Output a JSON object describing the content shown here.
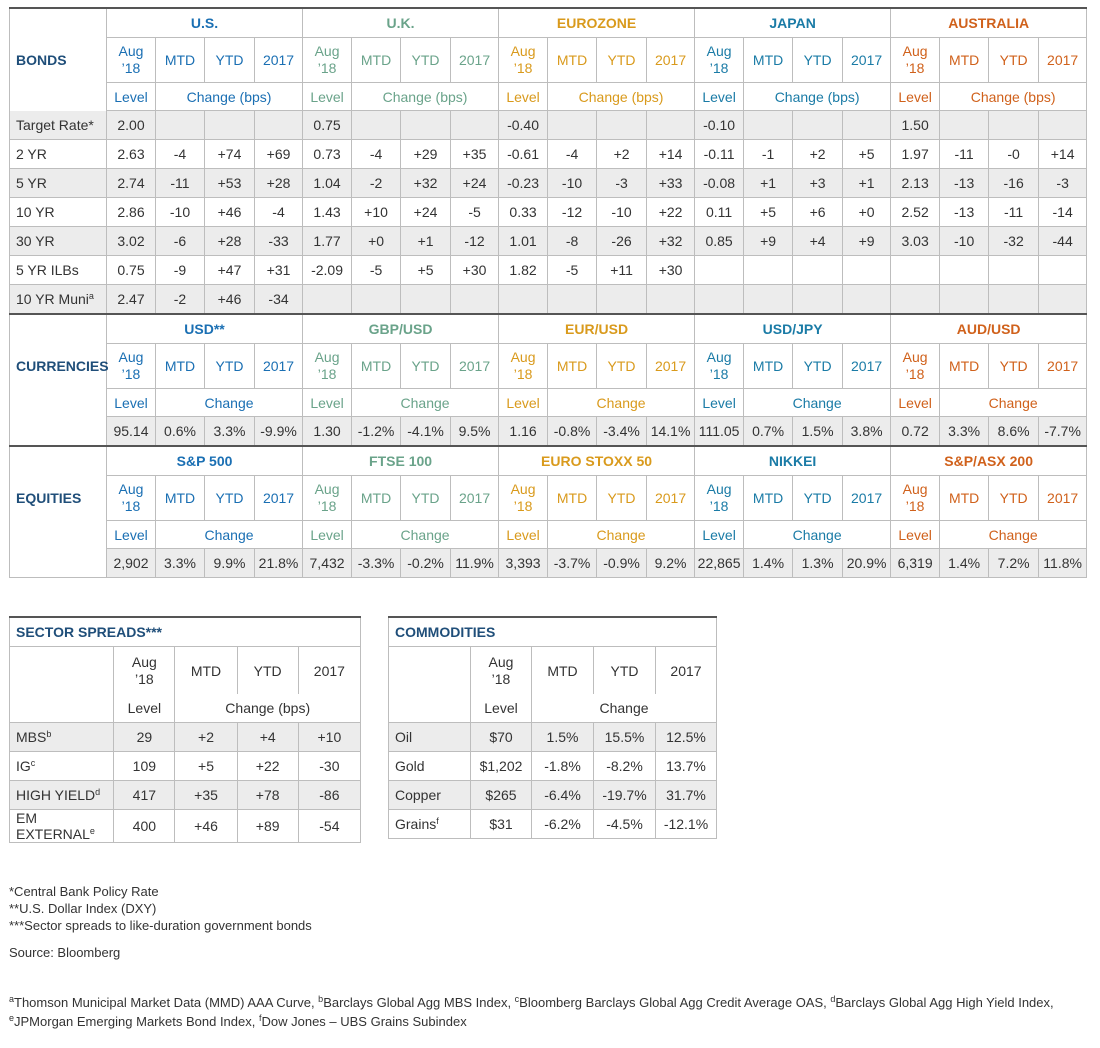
{
  "bonds": {
    "title": "BONDS",
    "regions": [
      "U.S.",
      "U.K.",
      "EUROZONE",
      "JAPAN",
      "AUSTRALIA"
    ],
    "col_aug": "Aug",
    "col_year": "’18",
    "col_mtd": "MTD",
    "col_ytd": "YTD",
    "col_2017": "2017",
    "sub_level": "Level",
    "sub_change": "Change (bps)",
    "rows": [
      {
        "label": "Target Rate*",
        "sup": "",
        "cells": [
          "2.00",
          "",
          "",
          "",
          "0.75",
          "",
          "",
          "",
          "-0.40",
          "",
          "",
          "",
          "-0.10",
          "",
          "",
          "",
          "1.50",
          "",
          "",
          ""
        ]
      },
      {
        "label": "2 YR",
        "sup": "",
        "cells": [
          "2.63",
          "-4",
          "+74",
          "+69",
          "0.73",
          "-4",
          "+29",
          "+35",
          "-0.61",
          "-4",
          "+2",
          "+14",
          "-0.11",
          "-1",
          "+2",
          "+5",
          "1.97",
          "-11",
          "-0",
          "+14"
        ]
      },
      {
        "label": "5 YR",
        "sup": "",
        "cells": [
          "2.74",
          "-11",
          "+53",
          "+28",
          "1.04",
          "-2",
          "+32",
          "+24",
          "-0.23",
          "-10",
          "-3",
          "+33",
          "-0.08",
          "+1",
          "+3",
          "+1",
          "2.13",
          "-13",
          "-16",
          "-3"
        ]
      },
      {
        "label": "10 YR",
        "sup": "",
        "cells": [
          "2.86",
          "-10",
          "+46",
          "-4",
          "1.43",
          "+10",
          "+24",
          "-5",
          "0.33",
          "-12",
          "-10",
          "+22",
          "0.11",
          "+5",
          "+6",
          "+0",
          "2.52",
          "-13",
          "-11",
          "-14"
        ]
      },
      {
        "label": "30 YR",
        "sup": "",
        "cells": [
          "3.02",
          "-6",
          "+28",
          "-33",
          "1.77",
          "+0",
          "+1",
          "-12",
          "1.01",
          "-8",
          "-26",
          "+32",
          "0.85",
          "+9",
          "+4",
          "+9",
          "3.03",
          "-10",
          "-32",
          "-44"
        ]
      },
      {
        "label": "5 YR ILBs",
        "sup": "",
        "cells": [
          "0.75",
          "-9",
          "+47",
          "+31",
          "-2.09",
          "-5",
          "+5",
          "+30",
          "1.82",
          "-5",
          "+11",
          "+30",
          "",
          "",
          "",
          "",
          "",
          "",
          "",
          ""
        ]
      },
      {
        "label": "10 YR Muni",
        "sup": "a",
        "cells": [
          "2.47",
          "-2",
          "+46",
          "-34",
          "",
          "",
          "",
          "",
          "",
          "",
          "",
          "",
          "",
          "",
          "",
          "",
          "",
          "",
          "",
          ""
        ]
      }
    ]
  },
  "currencies": {
    "title": "CURRENCIES",
    "regions": [
      "USD**",
      "GBP/USD",
      "EUR/USD",
      "USD/JPY",
      "AUD/USD"
    ],
    "sub_level": "Level",
    "sub_change": "Change",
    "cells": [
      "95.14",
      "0.6%",
      "3.3%",
      "-9.9%",
      "1.30",
      "-1.2%",
      "-4.1%",
      "9.5%",
      "1.16",
      "-0.8%",
      "-3.4%",
      "14.1%",
      "111.05",
      "0.7%",
      "1.5%",
      "3.8%",
      "0.72",
      "3.3%",
      "8.6%",
      "-7.7%"
    ]
  },
  "equities": {
    "title": "EQUITIES",
    "regions": [
      "S&P 500",
      "FTSE 100",
      "EURO STOXX 50",
      "NIKKEI",
      "S&P/ASX 200"
    ],
    "sub_level": "Level",
    "sub_change": "Change",
    "cells": [
      "2,902",
      "3.3%",
      "9.9%",
      "21.8%",
      "7,432",
      "-3.3%",
      "-0.2%",
      "11.9%",
      "3,393",
      "-3.7%",
      "-0.9%",
      "9.2%",
      "22,865",
      "1.4%",
      "1.3%",
      "20.9%",
      "6,319",
      "1.4%",
      "7.2%",
      "11.8%"
    ]
  },
  "sector_spreads": {
    "title": "SECTOR SPREADS***",
    "sub_level": "Level",
    "sub_change": "Change (bps)",
    "rows": [
      {
        "label": "MBS",
        "sup": "b",
        "cells": [
          "29",
          "+2",
          "+4",
          "+10"
        ]
      },
      {
        "label": "IG",
        "sup": "c",
        "cells": [
          "109",
          "+5",
          "+22",
          "-30"
        ]
      },
      {
        "label": "HIGH YIELD",
        "sup": "d",
        "cells": [
          "417",
          "+35",
          "+78",
          "-86"
        ]
      },
      {
        "label": "EM EXTERNAL",
        "sup": "e",
        "cells": [
          "400",
          "+46",
          "+89",
          "-54"
        ]
      }
    ]
  },
  "commodities": {
    "title": "COMMODITIES",
    "sub_level": "Level",
    "sub_change": "Change",
    "rows": [
      {
        "label": "Oil",
        "sup": "",
        "cells": [
          "$70",
          "1.5%",
          "15.5%",
          "12.5%"
        ]
      },
      {
        "label": "Gold",
        "sup": "",
        "cells": [
          "$1,202",
          "-1.8%",
          "-8.2%",
          "13.7%"
        ]
      },
      {
        "label": "Copper",
        "sup": "",
        "cells": [
          "$265",
          "-6.4%",
          "-19.7%",
          "31.7%"
        ]
      },
      {
        "label": "Grains",
        "sup": "f",
        "cells": [
          "$31",
          "-6.2%",
          "-4.5%",
          "-12.1%"
        ]
      }
    ]
  },
  "notes": {
    "n1": "*Central Bank Policy Rate",
    "n2": "**U.S. Dollar Index (DXY)",
    "n3": "***Sector spreads to like-duration government bonds",
    "source": "Source: Bloomberg",
    "f_a_sup": "a",
    "f_a": "Thomson Municipal Market Data (MMD) AAA Curve, ",
    "f_b_sup": "b",
    "f_b": "Barclays Global Agg MBS Index, ",
    "f_c_sup": "c",
    "f_c": "Bloomberg Barclays Global Agg Credit Average OAS, ",
    "f_d_sup": "d",
    "f_d": "Barclays Global Agg High Yield Index, ",
    "f_e_sup": "e",
    "f_e": "JPMorgan Emerging Markets Bond Index, ",
    "f_f_sup": "f",
    "f_f": "Dow Jones – UBS Grains Subindex"
  },
  "colors": {
    "us": "#1a6fb3",
    "uk": "#6aa38a",
    "eurozone": "#d99a1c",
    "japan": "#1a7ba6",
    "australia": "#d0611b",
    "section_title": "#1f4e79"
  }
}
